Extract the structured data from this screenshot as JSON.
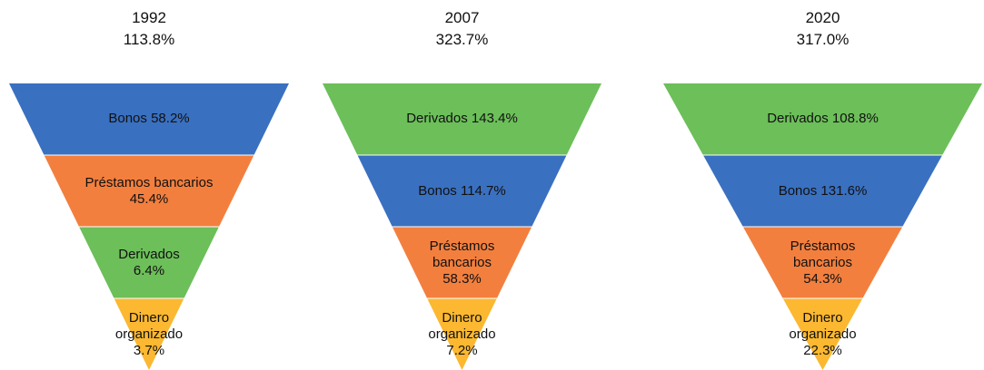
{
  "chart_data": [
    {
      "type": "funnel",
      "title": "1992",
      "total": 113.8,
      "total_label": "113.8%",
      "categories": [
        "Bonos",
        "Préstamos bancarios",
        "Derivados",
        "Dinero organizado"
      ],
      "values": [
        58.2,
        45.4,
        6.4,
        3.7
      ],
      "value_labels": [
        "58.2%",
        "45.4%",
        "6.4%",
        "3.7%"
      ],
      "colors": [
        "#3a70c0",
        "#f37f3e",
        "#6cbf59",
        "#fbb830"
      ]
    },
    {
      "type": "funnel",
      "title": "2007",
      "total": 323.7,
      "total_label": "323.7%",
      "categories": [
        "Derivados",
        "Bonos",
        "Préstamos bancarios",
        "Dinero organizado"
      ],
      "values": [
        143.4,
        114.7,
        58.3,
        7.2
      ],
      "value_labels": [
        "143.4%",
        "114.7%",
        "58.3%",
        "7.2%"
      ],
      "colors": [
        "#6cbf59",
        "#3a70c0",
        "#f37f3e",
        "#fbb830"
      ]
    },
    {
      "type": "funnel",
      "title": "2020",
      "total": 317.0,
      "total_label": "317.0%",
      "categories": [
        "Derivados",
        "Bonos",
        "Préstamos bancarios",
        "Dinero organizado"
      ],
      "values": [
        108.8,
        131.6,
        54.3,
        22.3
      ],
      "value_labels": [
        "108.8%",
        "131.6%",
        "54.3%",
        "22.3%"
      ],
      "colors": [
        "#6cbf59",
        "#3a70c0",
        "#f37f3e",
        "#fbb830"
      ]
    }
  ]
}
